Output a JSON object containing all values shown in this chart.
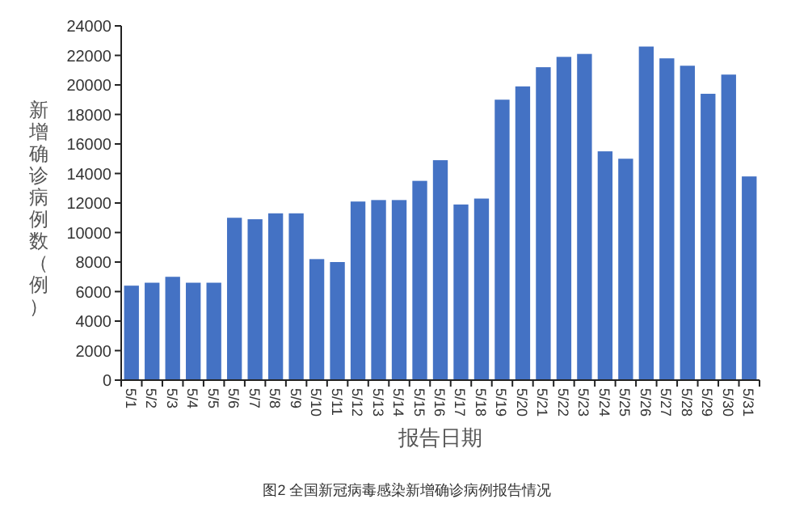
{
  "chart_data": {
    "type": "bar",
    "xlabel": "报告日期",
    "ylabel": "新增确诊病例数（例）",
    "annotations": [
      "图2 全国新冠病毒感染新增确诊病例报告情况"
    ],
    "categories": [
      "5/1",
      "5/2",
      "5/3",
      "5/4",
      "5/5",
      "5/6",
      "5/7",
      "5/8",
      "5/9",
      "5/10",
      "5/11",
      "5/12",
      "5/13",
      "5/14",
      "5/15",
      "5/16",
      "5/17",
      "5/18",
      "5/19",
      "5/20",
      "5/21",
      "5/22",
      "5/23",
      "5/24",
      "5/25",
      "5/26",
      "5/27",
      "5/28",
      "5/29",
      "5/30",
      "5/31"
    ],
    "values": [
      6400,
      6600,
      7000,
      6600,
      6600,
      11000,
      10900,
      11300,
      11300,
      8200,
      8000,
      12100,
      12200,
      12200,
      13500,
      14900,
      11900,
      12300,
      19000,
      19900,
      21200,
      21900,
      22100,
      15500,
      15000,
      22600,
      21800,
      21300,
      19400,
      20700,
      13800
    ],
    "color": "#4472c4",
    "ylim": [
      0,
      24000
    ],
    "yticks": [
      0,
      2000,
      4000,
      6000,
      8000,
      10000,
      12000,
      14000,
      16000,
      18000,
      20000,
      22000,
      24000
    ],
    "grid": false
  }
}
